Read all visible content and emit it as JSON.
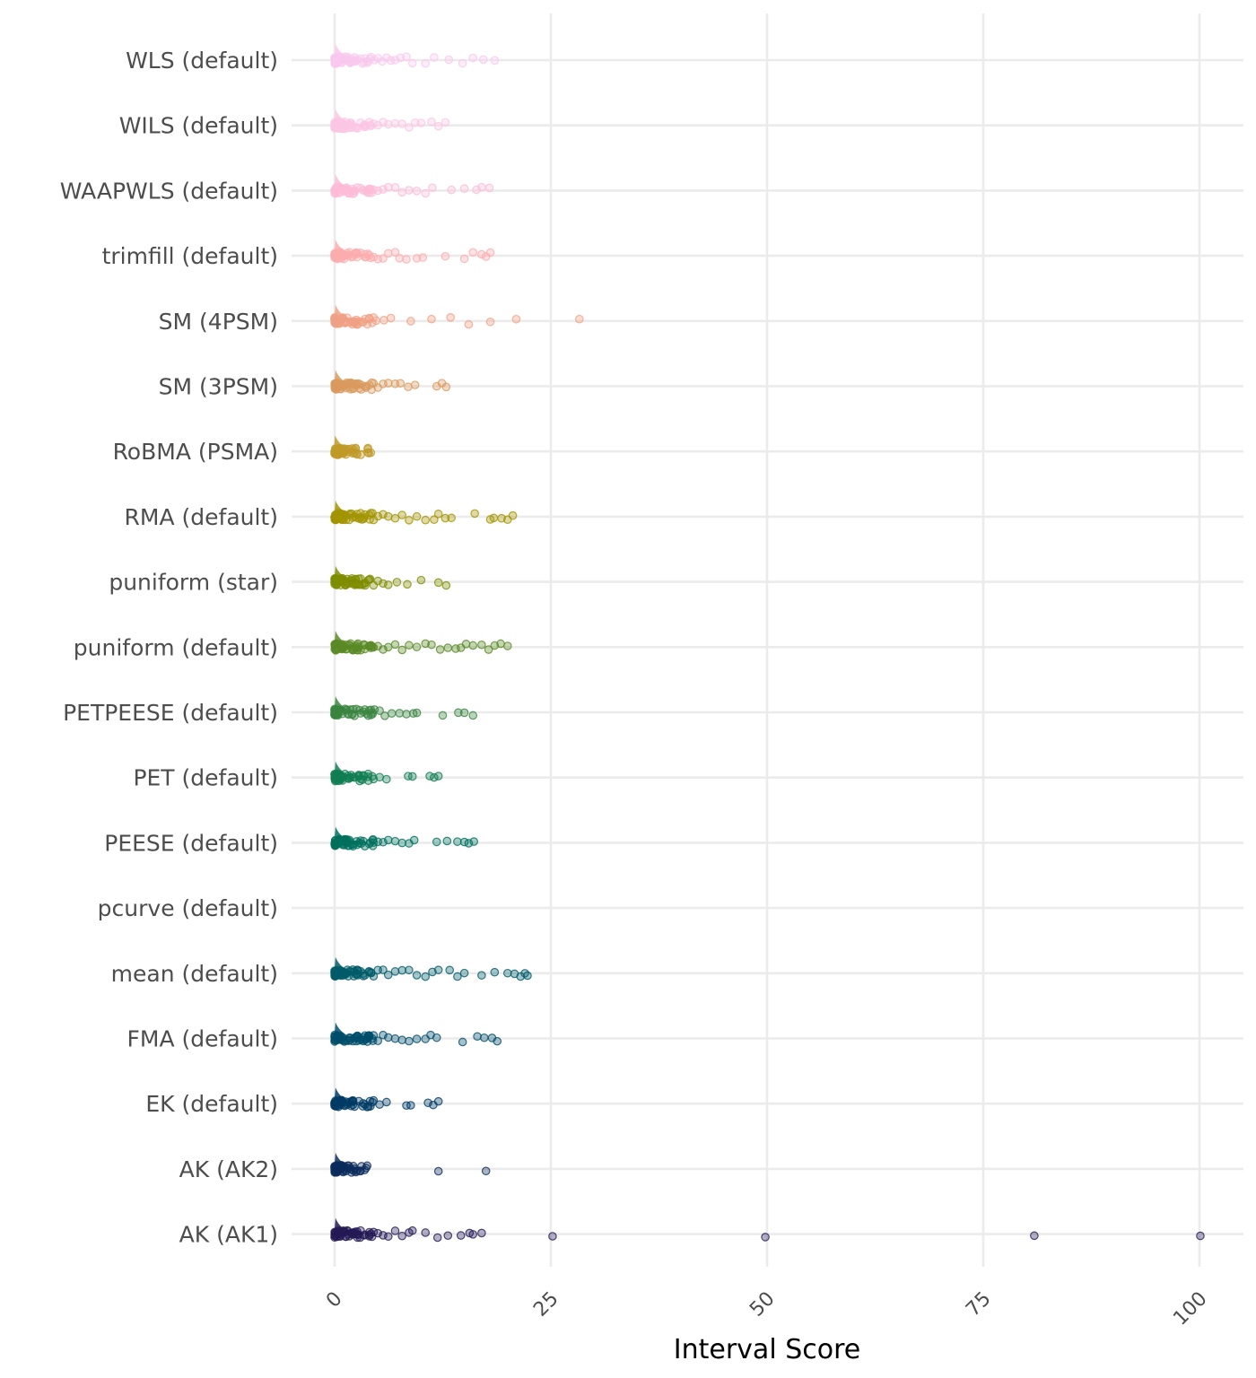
{
  "chart_data": {
    "type": "scatter",
    "subtype": "jittered points with half-density ridges",
    "xlabel": "Interval Score",
    "ylabel": "",
    "xlim": [
      0,
      100
    ],
    "x_ticks": [
      0,
      25,
      50,
      75,
      100
    ],
    "x_tick_labels": [
      "0",
      "25",
      "50",
      "75",
      "100"
    ],
    "grid": true,
    "legend": "none",
    "background": "#ffffff",
    "grid_color": "#ebebeb",
    "series": [
      {
        "name": "WLS (default)",
        "color": "#f9c8ee",
        "density_peak_x": 0.1,
        "points": [
          0.1,
          0.2,
          0.4,
          0.6,
          0.9,
          1.2,
          1.5,
          1.8,
          2.2,
          2.6,
          3,
          3.4,
          3.8,
          4.2,
          4.6,
          5,
          5.5,
          6,
          6.5,
          7,
          7.6,
          8.3,
          9,
          10.5,
          11.5,
          13.2,
          14.8,
          16,
          17.2,
          18.5
        ]
      },
      {
        "name": "WILS (default)",
        "color": "#fbc6e4",
        "density_peak_x": 0.1,
        "points": [
          0.1,
          0.2,
          0.4,
          0.6,
          0.9,
          1.2,
          1.6,
          2,
          2.5,
          3,
          3.5,
          4,
          4.5,
          5,
          5.6,
          6.2,
          7,
          7.8,
          8.6,
          9.3,
          10,
          11.2,
          12,
          12.8
        ]
      },
      {
        "name": "WAAPWLS (default)",
        "color": "#fcbcd8",
        "density_peak_x": 0.1,
        "points": [
          0.1,
          0.2,
          0.4,
          0.7,
          1,
          1.3,
          1.7,
          2.1,
          2.6,
          3,
          3.5,
          4,
          4.5,
          5,
          5.6,
          6.2,
          7,
          7.8,
          8.6,
          9.5,
          10.5,
          11.3,
          13.5,
          15,
          16.4,
          17,
          17.9
        ]
      },
      {
        "name": "trimfill (default)",
        "color": "#fcacae",
        "density_peak_x": 0.1,
        "points": [
          0.1,
          0.2,
          0.4,
          0.7,
          1,
          1.3,
          1.7,
          2.1,
          2.6,
          3,
          3.5,
          4,
          4.5,
          5,
          5.6,
          6.2,
          7,
          7.5,
          8.3,
          9.5,
          10.2,
          12.8,
          15,
          16,
          17,
          17.5,
          18
        ]
      },
      {
        "name": "SM (4PSM)",
        "color": "#f0a084",
        "density_peak_x": 0.1,
        "points": [
          0.1,
          0.2,
          0.4,
          0.6,
          0.9,
          1.2,
          1.5,
          2,
          2.5,
          3.2,
          4,
          4.8,
          5.7,
          6.5,
          8.8,
          11.2,
          13.4,
          15.5,
          18,
          21,
          28.3
        ]
      },
      {
        "name": "SM (3PSM)",
        "color": "#d99a5e",
        "density_peak_x": 0.1,
        "points": [
          0.1,
          0.2,
          0.4,
          0.6,
          0.9,
          1.2,
          1.5,
          2,
          2.5,
          3,
          3.5,
          4,
          4.5,
          5,
          5.6,
          6.2,
          7,
          7.6,
          8.5,
          9.3,
          11.8,
          12.4,
          12.9
        ]
      },
      {
        "name": "RoBMA (PSMA)",
        "color": "#c19a28",
        "density_peak_x": 0.05,
        "points": [
          0.05,
          0.1,
          0.2,
          0.3,
          0.4,
          0.5,
          0.6,
          0.7,
          0.8,
          0.9,
          1,
          1.1,
          1.2,
          1.3,
          1.5,
          1.7,
          2
        ]
      },
      {
        "name": "RMA (default)",
        "color": "#a29400",
        "density_peak_x": 0.1,
        "points": [
          0.1,
          0.2,
          0.4,
          0.7,
          1,
          1.3,
          1.7,
          2.1,
          2.6,
          3,
          3.5,
          4,
          4.5,
          5,
          5.6,
          6.2,
          7,
          7.8,
          8.6,
          9.5,
          10.5,
          11.5,
          12,
          12.8,
          13.5,
          16.2,
          18,
          18.4,
          19.3,
          20,
          20.6
        ]
      },
      {
        "name": "puniform (star)",
        "color": "#7f8d00",
        "density_peak_x": 0.1,
        "points": [
          0.1,
          0.2,
          0.4,
          0.6,
          0.9,
          1.2,
          1.5,
          2,
          2.5,
          3,
          3.5,
          4,
          4.5,
          5,
          5.6,
          6.2,
          7.2,
          8.4,
          10,
          12,
          12.9
        ]
      },
      {
        "name": "puniform (default)",
        "color": "#5a8a24",
        "density_peak_x": 0.1,
        "points": [
          0.1,
          0.2,
          0.4,
          0.7,
          1,
          1.3,
          1.7,
          2.1,
          2.6,
          3,
          3.5,
          4,
          4.5,
          5,
          5.6,
          6.2,
          7,
          7.8,
          8.6,
          9.5,
          10.5,
          11.2,
          12.2,
          13.1,
          14,
          14.6,
          15.2,
          16,
          17,
          17.8,
          18.5,
          19.2,
          20
        ]
      },
      {
        "name": "PETPEESE (default)",
        "color": "#398440",
        "density_peak_x": 0.1,
        "points": [
          0.1,
          0.2,
          0.4,
          0.6,
          0.9,
          1.2,
          1.6,
          2,
          2.5,
          3,
          3.5,
          4,
          4.6,
          5.2,
          5.8,
          6.6,
          7.5,
          8.3,
          9.1,
          9.5,
          12.5,
          14.3,
          15,
          16
        ]
      },
      {
        "name": "PET (default)",
        "color": "#107d52",
        "density_peak_x": 0.1,
        "points": [
          0.1,
          0.2,
          0.4,
          0.6,
          0.9,
          1.2,
          1.5,
          1.9,
          2.3,
          2.8,
          3.3,
          3.9,
          4.5,
          5.2,
          6,
          8.5,
          9,
          11,
          11.5,
          12
        ]
      },
      {
        "name": "PEESE (default)",
        "color": "#00705e",
        "density_peak_x": 0.1,
        "points": [
          0.1,
          0.2,
          0.4,
          0.7,
          1,
          1.3,
          1.7,
          2.1,
          2.6,
          3,
          3.5,
          4,
          4.5,
          5,
          5.6,
          6.2,
          7,
          7.8,
          8.6,
          9.2,
          11.8,
          13,
          14.2,
          15,
          15.5,
          16.1
        ]
      },
      {
        "name": "pcurve (default)",
        "color": "#006266",
        "density_peak_x": null,
        "points": []
      },
      {
        "name": "mean (default)",
        "color": "#005b69",
        "density_peak_x": 0.1,
        "points": [
          0.1,
          0.2,
          0.4,
          0.7,
          1,
          1.3,
          1.7,
          2.1,
          2.6,
          3,
          3.5,
          4,
          4.5,
          5,
          5.6,
          6.2,
          7,
          7.8,
          8.6,
          9.5,
          10.5,
          11.3,
          12,
          13.3,
          14.2,
          15,
          17,
          18.5,
          20,
          20.8,
          21.5,
          22,
          22.3
        ]
      },
      {
        "name": "FMA (default)",
        "color": "#004d6b",
        "density_peak_x": 0.1,
        "points": [
          0.1,
          0.2,
          0.4,
          0.7,
          1,
          1.3,
          1.7,
          2.1,
          2.6,
          3,
          3.5,
          4,
          4.5,
          5,
          5.6,
          6.2,
          7,
          7.8,
          8.6,
          9.5,
          10.5,
          11.1,
          11.8,
          14.8,
          16.5,
          17.3,
          18.2,
          18.8
        ]
      },
      {
        "name": "EK (default)",
        "color": "#003b65",
        "density_peak_x": 0.1,
        "points": [
          0.1,
          0.2,
          0.4,
          0.6,
          0.9,
          1.2,
          1.5,
          1.9,
          2.3,
          2.8,
          3.3,
          3.9,
          4.5,
          5.2,
          6,
          8.3,
          8.8,
          10.8,
          11.4,
          12
        ]
      },
      {
        "name": "AK (AK2)",
        "color": "#0c2c5c",
        "density_peak_x": 0.1,
        "points": [
          0.1,
          0.2,
          0.3,
          0.5,
          0.7,
          0.9,
          1.1,
          1.3,
          1.6,
          1.9,
          2.2,
          3,
          12,
          17.5
        ]
      },
      {
        "name": "AK (AK1)",
        "color": "#241a55",
        "density_peak_x": 0.1,
        "points": [
          0.1,
          0.2,
          0.4,
          0.7,
          1,
          1.3,
          1.7,
          2.1,
          2.6,
          3,
          3.5,
          4,
          4.5,
          5,
          5.6,
          6.2,
          7,
          7.8,
          8.6,
          9,
          10.5,
          11.9,
          13.1,
          14.6,
          15.6,
          16,
          17,
          25.2,
          49.8,
          80.9,
          100.1
        ]
      }
    ]
  }
}
